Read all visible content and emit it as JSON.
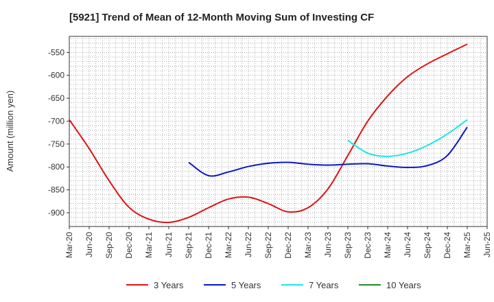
{
  "chart_data": {
    "type": "line",
    "title": "[5921]  Trend of Mean of 12-Month Moving Sum of Investing CF",
    "ylabel": "Amount (million yen)",
    "xlabel": "",
    "ylim": [
      -930,
      -515
    ],
    "yticks": [
      -550,
      -600,
      -650,
      -700,
      -750,
      -800,
      -850,
      -900
    ],
    "x_tick_labels": [
      "Mar-20",
      "Jun-20",
      "Sep-20",
      "Dec-20",
      "Mar-21",
      "Jun-21",
      "Sep-21",
      "Dec-21",
      "Mar-22",
      "Jun-22",
      "Sep-22",
      "Dec-22",
      "Mar-23",
      "Jun-23",
      "Sep-23",
      "Dec-23",
      "Mar-24",
      "Jun-24",
      "Sep-24",
      "Dec-24",
      "Mar-25",
      "Jun-25"
    ],
    "grid": true,
    "legend_position": "bottom",
    "series": [
      {
        "name": "3 Years",
        "color": "#dd1111",
        "values": [
          {
            "x": "Mar-20",
            "y": -697
          },
          {
            "x": "Jun-20",
            "y": -760
          },
          {
            "x": "Sep-20",
            "y": -830
          },
          {
            "x": "Dec-20",
            "y": -888
          },
          {
            "x": "Mar-21",
            "y": -914
          },
          {
            "x": "Jun-21",
            "y": -921
          },
          {
            "x": "Sep-21",
            "y": -910
          },
          {
            "x": "Dec-21",
            "y": -889
          },
          {
            "x": "Mar-22",
            "y": -870
          },
          {
            "x": "Jun-22",
            "y": -866
          },
          {
            "x": "Sep-22",
            "y": -880
          },
          {
            "x": "Dec-22",
            "y": -898
          },
          {
            "x": "Mar-23",
            "y": -889
          },
          {
            "x": "Jun-23",
            "y": -848
          },
          {
            "x": "Sep-23",
            "y": -775
          },
          {
            "x": "Dec-23",
            "y": -700
          },
          {
            "x": "Mar-24",
            "y": -645
          },
          {
            "x": "Jun-24",
            "y": -603
          },
          {
            "x": "Sep-24",
            "y": -575
          },
          {
            "x": "Dec-24",
            "y": -553
          },
          {
            "x": "Mar-25",
            "y": -532
          }
        ]
      },
      {
        "name": "5 Years",
        "color": "#0a14c8",
        "values": [
          {
            "x": "Sep-21",
            "y": -790
          },
          {
            "x": "Dec-21",
            "y": -819
          },
          {
            "x": "Mar-22",
            "y": -811
          },
          {
            "x": "Jun-22",
            "y": -799
          },
          {
            "x": "Sep-22",
            "y": -792
          },
          {
            "x": "Dec-22",
            "y": -790
          },
          {
            "x": "Mar-23",
            "y": -794
          },
          {
            "x": "Jun-23",
            "y": -796
          },
          {
            "x": "Sep-23",
            "y": -794
          },
          {
            "x": "Dec-23",
            "y": -793
          },
          {
            "x": "Mar-24",
            "y": -798
          },
          {
            "x": "Jun-24",
            "y": -801
          },
          {
            "x": "Sep-24",
            "y": -797
          },
          {
            "x": "Dec-24",
            "y": -775
          },
          {
            "x": "Mar-25",
            "y": -713
          }
        ]
      },
      {
        "name": "7 Years",
        "color": "#19e5e5",
        "values": [
          {
            "x": "Sep-23",
            "y": -742
          },
          {
            "x": "Dec-23",
            "y": -770
          },
          {
            "x": "Mar-24",
            "y": -777
          },
          {
            "x": "Jun-24",
            "y": -770
          },
          {
            "x": "Sep-24",
            "y": -753
          },
          {
            "x": "Dec-24",
            "y": -728
          },
          {
            "x": "Mar-25",
            "y": -697
          }
        ]
      },
      {
        "name": "10 Years",
        "color": "#228b22",
        "values": []
      }
    ]
  }
}
